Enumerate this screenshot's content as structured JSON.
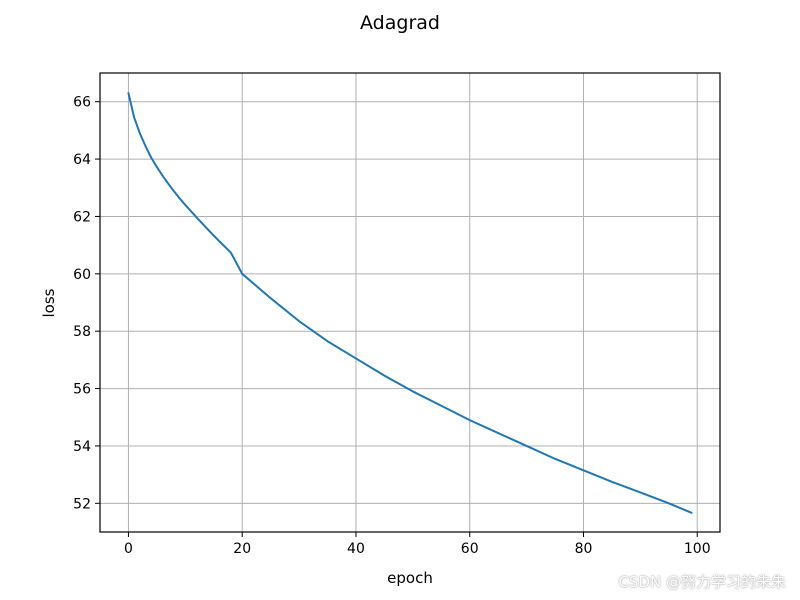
{
  "chart_data": {
    "type": "line",
    "title": "Adagrad",
    "xlabel": "epoch",
    "ylabel": "loss",
    "xlim": [
      -5,
      104
    ],
    "ylim": [
      51,
      67
    ],
    "xticks": [
      0,
      20,
      40,
      60,
      80,
      100
    ],
    "yticks": [
      52,
      54,
      56,
      58,
      60,
      62,
      64,
      66
    ],
    "grid": true,
    "series": [
      {
        "color": "#1f77b4",
        "x": [
          0,
          1,
          2,
          3,
          4,
          5,
          6,
          7,
          8,
          9,
          10,
          12,
          14,
          16,
          18,
          20,
          25,
          30,
          35,
          40,
          45,
          50,
          55,
          60,
          65,
          70,
          75,
          80,
          85,
          90,
          95,
          99
        ],
        "y": [
          66.3,
          65.45,
          64.9,
          64.45,
          64.05,
          63.72,
          63.42,
          63.14,
          62.88,
          62.63,
          62.4,
          61.96,
          61.54,
          61.13,
          60.74,
          60.0,
          59.15,
          58.35,
          57.65,
          57.05,
          56.45,
          55.9,
          55.4,
          54.9,
          54.45,
          54.0,
          53.55,
          53.15,
          52.75,
          52.38,
          52.0,
          51.67
        ]
      }
    ]
  },
  "watermark": "CSDN @努力学习的朱朱"
}
